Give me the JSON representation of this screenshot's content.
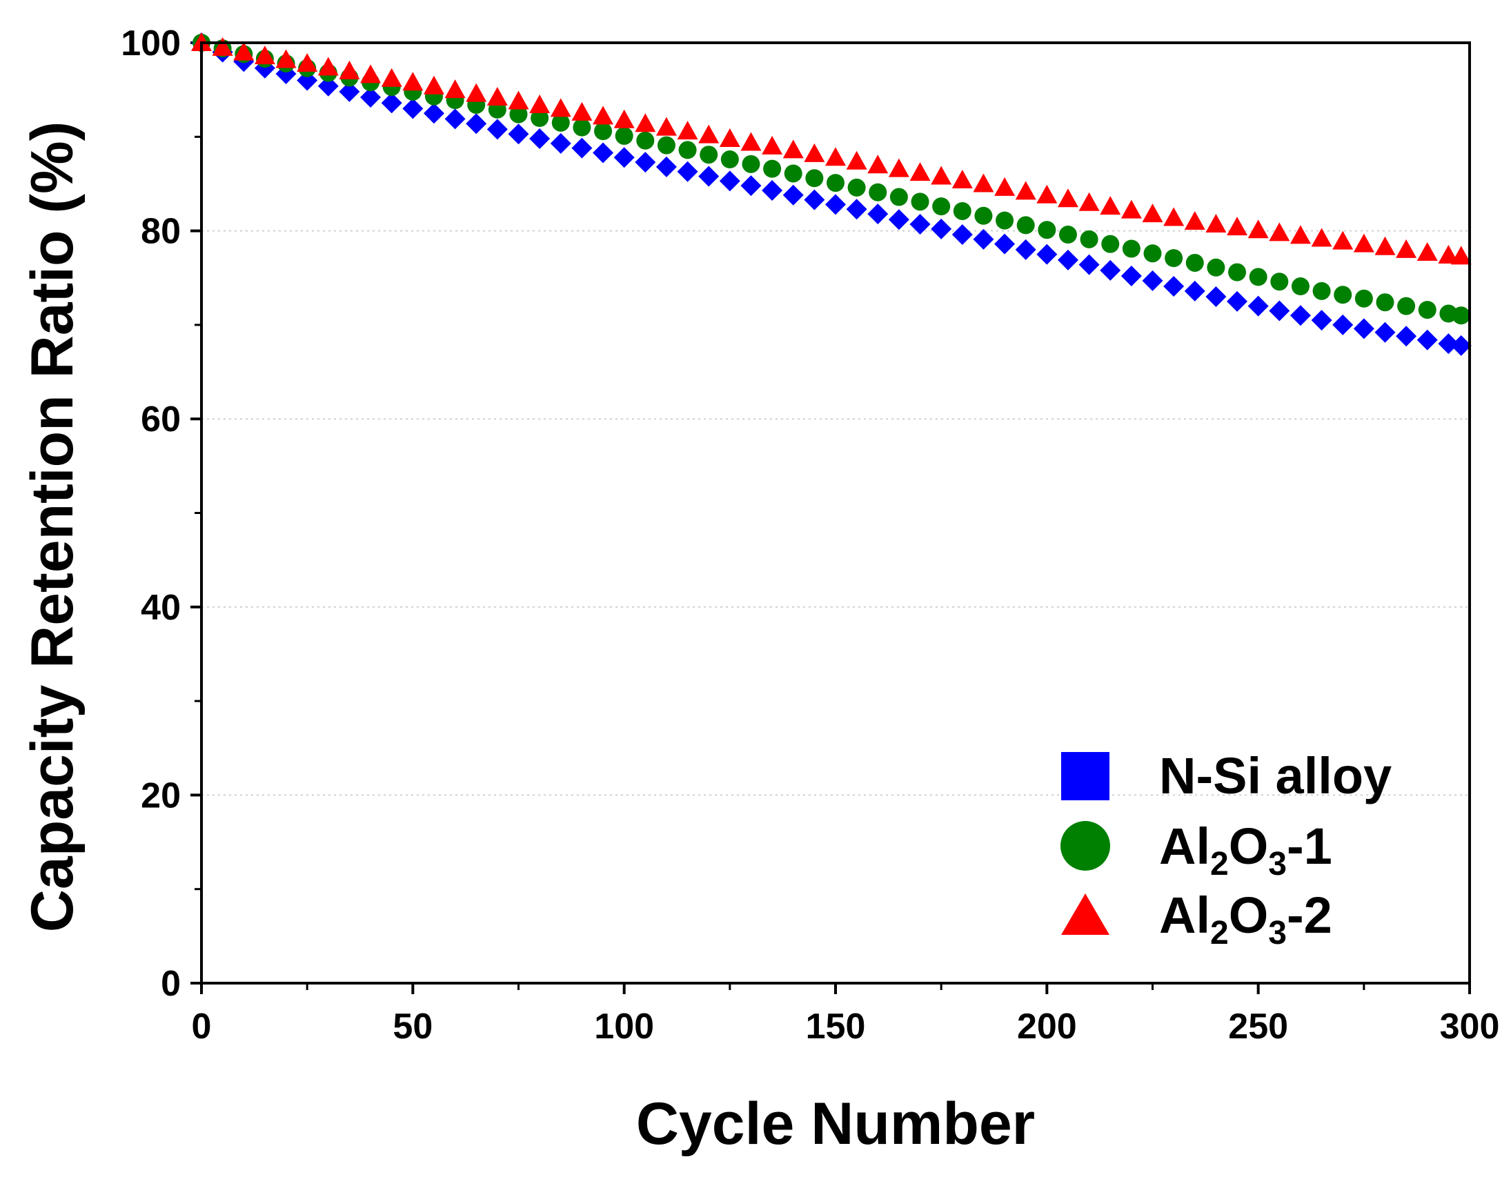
{
  "chart_data": {
    "type": "scatter",
    "title": "",
    "xlabel": "Cycle Number",
    "ylabel": "Capacity Retention Ratio (%)",
    "xlim": [
      0,
      300
    ],
    "ylim": [
      0,
      100
    ],
    "xticks": [
      0,
      50,
      100,
      150,
      200,
      250,
      300
    ],
    "yticks": [
      0,
      20,
      40,
      60,
      80,
      100
    ],
    "grid": true,
    "legend_position": "bottom-right",
    "x": [
      0,
      5,
      10,
      15,
      20,
      25,
      30,
      35,
      40,
      45,
      50,
      55,
      60,
      65,
      70,
      75,
      80,
      85,
      90,
      95,
      100,
      105,
      110,
      115,
      120,
      125,
      130,
      135,
      140,
      145,
      150,
      155,
      160,
      165,
      170,
      175,
      180,
      185,
      190,
      195,
      200,
      205,
      210,
      215,
      220,
      225,
      230,
      235,
      240,
      245,
      250,
      255,
      260,
      265,
      270,
      275,
      280,
      285,
      290,
      295,
      298
    ],
    "series": [
      {
        "name": "N-Si alloy",
        "marker": "diamond",
        "legend_marker": "square",
        "color": "#0000ff",
        "values": [
          100.0,
          99.0,
          98.0,
          97.3,
          96.7,
          96.0,
          95.4,
          94.8,
          94.2,
          93.6,
          93.0,
          92.5,
          91.9,
          91.4,
          90.8,
          90.3,
          89.8,
          89.3,
          88.8,
          88.3,
          87.8,
          87.3,
          86.8,
          86.3,
          85.8,
          85.3,
          84.8,
          84.3,
          83.8,
          83.3,
          82.8,
          82.3,
          81.8,
          81.2,
          80.7,
          80.2,
          79.6,
          79.1,
          78.6,
          78.0,
          77.5,
          76.9,
          76.4,
          75.8,
          75.2,
          74.7,
          74.1,
          73.6,
          73.0,
          72.5,
          72.0,
          71.5,
          71.0,
          70.5,
          70.0,
          69.6,
          69.2,
          68.8,
          68.4,
          68.0,
          67.8
        ]
      },
      {
        "name": "Al2O3-1",
        "marker": "circle",
        "legend_marker": "circle",
        "color": "#008000",
        "values": [
          100.0,
          99.4,
          98.8,
          98.3,
          97.8,
          97.3,
          96.8,
          96.3,
          95.8,
          95.3,
          94.8,
          94.3,
          93.9,
          93.4,
          92.9,
          92.4,
          92.0,
          91.5,
          91.0,
          90.6,
          90.1,
          89.6,
          89.1,
          88.6,
          88.1,
          87.6,
          87.1,
          86.6,
          86.1,
          85.6,
          85.1,
          84.6,
          84.1,
          83.6,
          83.1,
          82.6,
          82.1,
          81.6,
          81.1,
          80.6,
          80.1,
          79.6,
          79.1,
          78.6,
          78.1,
          77.6,
          77.1,
          76.6,
          76.1,
          75.6,
          75.1,
          74.6,
          74.1,
          73.6,
          73.2,
          72.8,
          72.4,
          72.0,
          71.6,
          71.2,
          71.0
        ]
      },
      {
        "name": "Al2O3-2",
        "marker": "triangle",
        "legend_marker": "triangle",
        "color": "#ff0000",
        "values": [
          100.0,
          99.5,
          99.0,
          98.6,
          98.2,
          97.8,
          97.4,
          97.0,
          96.6,
          96.2,
          95.8,
          95.4,
          95.0,
          94.6,
          94.2,
          93.8,
          93.4,
          93.0,
          92.6,
          92.2,
          91.8,
          91.4,
          91.0,
          90.6,
          90.2,
          89.8,
          89.4,
          89.0,
          88.6,
          88.2,
          87.8,
          87.4,
          87.0,
          86.6,
          86.2,
          85.8,
          85.4,
          85.0,
          84.6,
          84.2,
          83.8,
          83.4,
          83.0,
          82.6,
          82.2,
          81.8,
          81.4,
          81.0,
          80.7,
          80.4,
          80.1,
          79.8,
          79.5,
          79.2,
          78.9,
          78.6,
          78.3,
          78.0,
          77.7,
          77.4,
          77.3
        ]
      }
    ],
    "legend": [
      {
        "label_main": "N-Si alloy",
        "label_sub": "",
        "label_tail": ""
      },
      {
        "label_main": "Al",
        "label_sub": "2",
        "label_mid": "O",
        "label_sub2": "3",
        "label_tail": "-1"
      },
      {
        "label_main": "Al",
        "label_sub": "2",
        "label_mid": "O",
        "label_sub2": "3",
        "label_tail": "-2"
      }
    ]
  }
}
